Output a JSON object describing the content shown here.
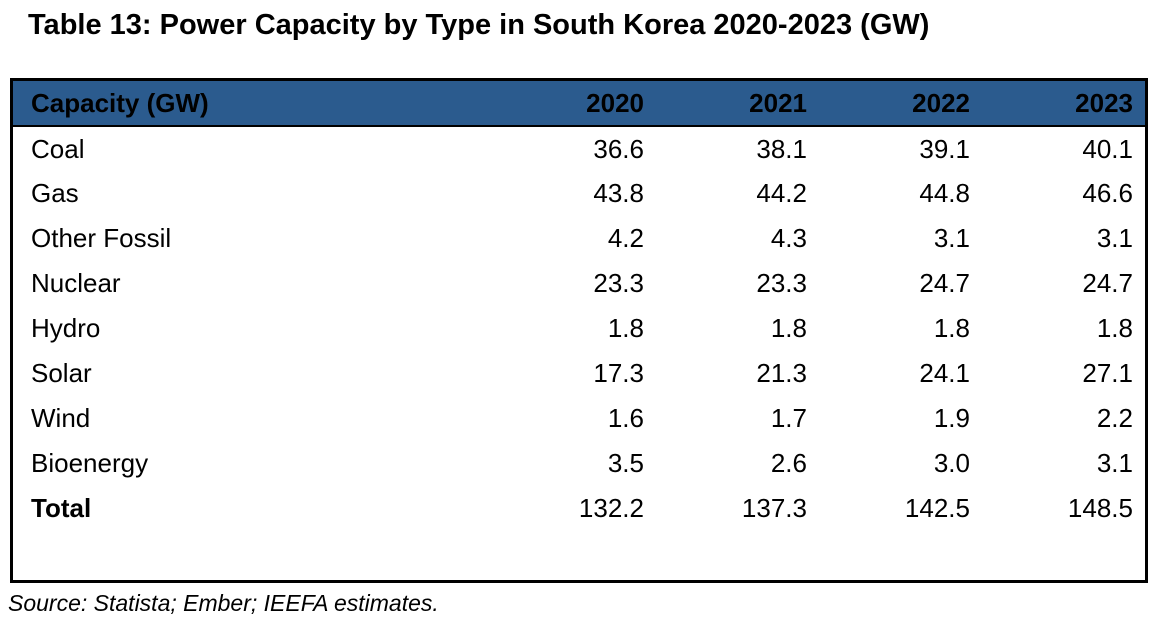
{
  "title": "Table 13: Power Capacity by Type in South Korea 2020-2023 (GW)",
  "source_note": "Source: Statista; Ember; IEEFA estimates.",
  "colors": {
    "header_bg": "#2B5B8E",
    "border": "#000000",
    "text": "#000000"
  },
  "table": {
    "header": {
      "label": "Capacity (GW)",
      "years": [
        "2020",
        "2021",
        "2022",
        "2023"
      ]
    },
    "rows": [
      {
        "label": "Coal",
        "values": [
          "36.6",
          "38.1",
          "39.1",
          "40.1"
        ]
      },
      {
        "label": "Gas",
        "values": [
          "43.8",
          "44.2",
          "44.8",
          "46.6"
        ]
      },
      {
        "label": "Other Fossil",
        "values": [
          "4.2",
          "4.3",
          "3.1",
          "3.1"
        ]
      },
      {
        "label": "Nuclear",
        "values": [
          "23.3",
          "23.3",
          "24.7",
          "24.7"
        ]
      },
      {
        "label": "Hydro",
        "values": [
          "1.8",
          "1.8",
          "1.8",
          "1.8"
        ]
      },
      {
        "label": "Solar",
        "values": [
          "17.3",
          "21.3",
          "24.1",
          "27.1"
        ]
      },
      {
        "label": "Wind",
        "values": [
          "1.6",
          "1.7",
          "1.9",
          "2.2"
        ]
      },
      {
        "label": "Bioenergy",
        "values": [
          "3.5",
          "2.6",
          "3.0",
          "3.1"
        ]
      },
      {
        "label": "Total",
        "values": [
          "132.2",
          "137.3",
          "142.5",
          "148.5"
        ]
      }
    ]
  },
  "chart_data": {
    "type": "table",
    "title": "Table 13: Power Capacity by Type in South Korea 2020-2023 (GW)",
    "columns": [
      "Capacity (GW)",
      "2020",
      "2021",
      "2022",
      "2023"
    ],
    "categories": [
      "Coal",
      "Gas",
      "Other Fossil",
      "Nuclear",
      "Hydro",
      "Solar",
      "Wind",
      "Bioenergy",
      "Total"
    ],
    "series": [
      {
        "name": "2020",
        "values": [
          36.6,
          43.8,
          4.2,
          23.3,
          1.8,
          17.3,
          1.6,
          3.5,
          132.2
        ]
      },
      {
        "name": "2021",
        "values": [
          38.1,
          44.2,
          4.3,
          23.3,
          1.8,
          21.3,
          1.7,
          2.6,
          137.3
        ]
      },
      {
        "name": "2022",
        "values": [
          39.1,
          44.8,
          3.1,
          24.7,
          1.8,
          24.1,
          1.9,
          3.0,
          142.5
        ]
      },
      {
        "name": "2023",
        "values": [
          40.1,
          46.6,
          3.1,
          24.7,
          1.8,
          27.1,
          2.2,
          3.1,
          148.5
        ]
      }
    ],
    "note": "Source: Statista; Ember; IEEFA estimates."
  }
}
